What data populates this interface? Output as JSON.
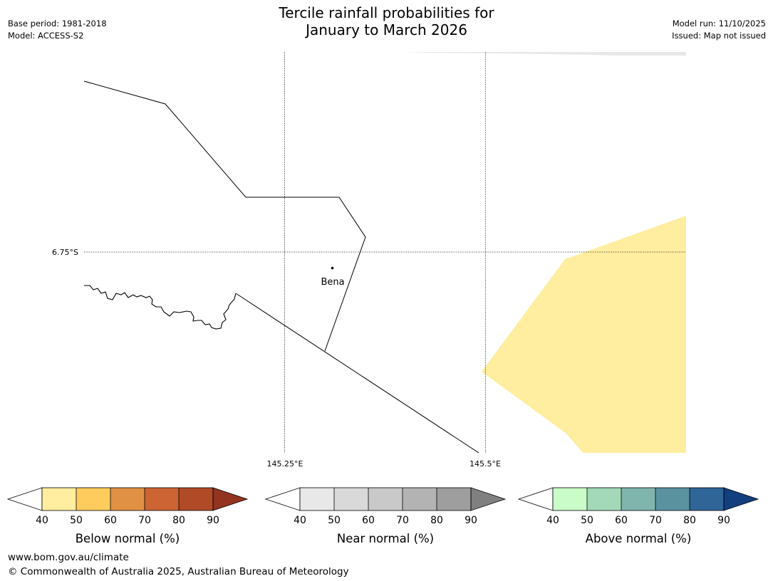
{
  "header": {
    "title_line1": "Tercile rainfall probabilities for",
    "title_line2": "January to March 2026",
    "base_period": "Base period: 1981-2018",
    "model": "Model: ACCESS-S2",
    "model_run": "Model run: 11/10/2025",
    "issued": "Issued: Map not issued"
  },
  "map": {
    "lat_label": "6.75°S",
    "lon_labels": [
      "145.25°E",
      "145.5°E"
    ],
    "place_label": "Bena",
    "colors": {
      "border": "#000000",
      "grid": "#000000",
      "below_40_50": "#ffeda0",
      "near_band": "#e8e8e8"
    }
  },
  "legends": [
    {
      "title": "Below normal (%)",
      "ticks": [
        "40",
        "50",
        "60",
        "70",
        "80",
        "90"
      ],
      "colors": [
        "#ffeda0",
        "#fecc5c",
        "#e09143",
        "#cc6433",
        "#b04a27",
        "#923420"
      ]
    },
    {
      "title": "Near normal (%)",
      "ticks": [
        "40",
        "50",
        "60",
        "70",
        "80",
        "90"
      ],
      "colors": [
        "#e8e8e8",
        "#d9d9d9",
        "#c9c9c9",
        "#b3b3b3",
        "#9e9e9e",
        "#808080"
      ]
    },
    {
      "title": "Above normal (%)",
      "ticks": [
        "40",
        "50",
        "60",
        "70",
        "80",
        "90"
      ],
      "colors": [
        "#c9fcc9",
        "#a3d9b8",
        "#7fb5ad",
        "#5a92a0",
        "#2f6597",
        "#123f7e"
      ]
    }
  ],
  "footer": {
    "url": "www.bom.gov.au/climate",
    "copyright": "© Commonwealth of Australia 2025, Australian Bureau of Meteorology"
  }
}
